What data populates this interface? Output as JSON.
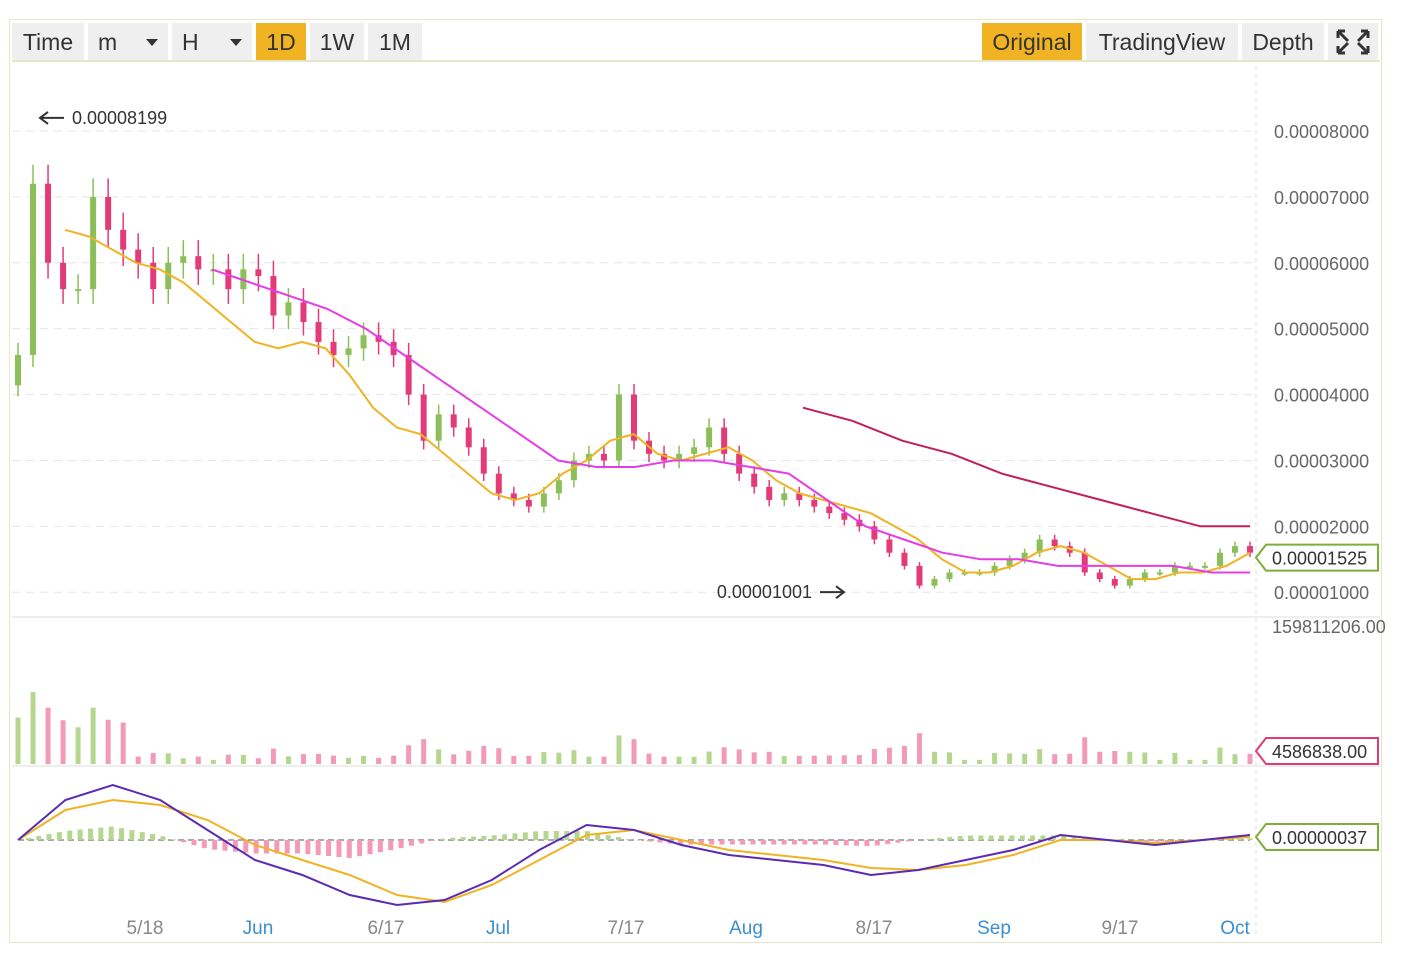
{
  "toolbar": {
    "time_label": "Time",
    "minute_select": "m",
    "hour_select": "H",
    "intervals": [
      "1D",
      "1W",
      "1M"
    ],
    "active_interval": "1D",
    "views": [
      "Original",
      "TradingView",
      "Depth"
    ],
    "active_view": "Original"
  },
  "colors": {
    "up": "#8cbf5a",
    "down": "#e23b77",
    "ma_short": "#f0b324",
    "ma_mid": "#e63ce6",
    "ma_long": "#c21e5c",
    "dif": "#5b2bb3",
    "dea": "#f0b324",
    "active_button": "#f0b324"
  },
  "chart_data": {
    "type": "line",
    "price": {
      "x_ticks": [
        "5/18",
        "Jun",
        "6/17",
        "Jul",
        "7/17",
        "Aug",
        "8/17",
        "Sep",
        "9/17",
        "Oct"
      ],
      "y_ticks": [
        "0.00008000",
        "0.00007000",
        "0.00006000",
        "0.00005000",
        "0.00004000",
        "0.00003000",
        "0.00002000",
        "0.00001000"
      ],
      "ylim": [
        7e-06,
        8.85e-05
      ],
      "high_annotation": "0.00008199",
      "low_annotation": "0.00001001",
      "last_price": "0.00001525",
      "candles_close": [
        4.6e-05,
        7.2e-05,
        6e-05,
        5.6e-05,
        5.6e-05,
        7e-05,
        6.5e-05,
        6.2e-05,
        6e-05,
        5.6e-05,
        6e-05,
        6.1e-05,
        5.9e-05,
        5.9e-05,
        5.6e-05,
        5.9e-05,
        5.8e-05,
        5.2e-05,
        5.4e-05,
        5.1e-05,
        4.8e-05,
        4.6e-05,
        4.7e-05,
        4.9e-05,
        4.8e-05,
        4.6e-05,
        4e-05,
        3.3e-05,
        3.7e-05,
        3.5e-05,
        3.2e-05,
        2.8e-05,
        2.5e-05,
        2.4e-05,
        2.3e-05,
        2.5e-05,
        2.7e-05,
        3e-05,
        3.1e-05,
        3e-05,
        4e-05,
        3.3e-05,
        3.1e-05,
        3e-05,
        3.1e-05,
        3.2e-05,
        3.5e-05,
        3.1e-05,
        2.8e-05,
        2.6e-05,
        2.4e-05,
        2.5e-05,
        2.4e-05,
        2.3e-05,
        2.2e-05,
        2.1e-05,
        2e-05,
        1.8e-05,
        1.6e-05,
        1.4e-05,
        1.1e-05,
        1.2e-05,
        1.3e-05,
        1.3e-05,
        1.3e-05,
        1.4e-05,
        1.5e-05,
        1.6e-05,
        1.8e-05,
        1.7e-05,
        1.6e-05,
        1.3e-05,
        1.2e-05,
        1.1e-05,
        1.2e-05,
        1.3e-05,
        1.3e-05,
        1.4e-05,
        1.4e-05,
        1.4e-05,
        1.6e-05,
        1.7e-05,
        1.6e-05
      ],
      "ma_short": [
        6.5e-05,
        6.4e-05,
        6.2e-05,
        6e-05,
        5.9e-05,
        5.7e-05,
        5.4e-05,
        5.1e-05,
        4.8e-05,
        4.7e-05,
        4.8e-05,
        4.7e-05,
        4.3e-05,
        3.8e-05,
        3.5e-05,
        3.4e-05,
        3.1e-05,
        2.8e-05,
        2.5e-05,
        2.4e-05,
        2.5e-05,
        2.8e-05,
        3e-05,
        3.3e-05,
        3.4e-05,
        3.1e-05,
        3e-05,
        3.1e-05,
        3.2e-05,
        3e-05,
        2.7e-05,
        2.5e-05,
        2.4e-05,
        2.3e-05,
        2.2e-05,
        2e-05,
        1.8e-05,
        1.5e-05,
        1.3e-05,
        1.3e-05,
        1.4e-05,
        1.6e-05,
        1.7e-05,
        1.6e-05,
        1.4e-05,
        1.2e-05,
        1.2e-05,
        1.3e-05,
        1.3e-05,
        1.4e-05,
        1.6e-05
      ],
      "ma_mid": [
        5.9e-05,
        5.7e-05,
        5.5e-05,
        5.3e-05,
        5e-05,
        4.6e-05,
        4.2e-05,
        3.8e-05,
        3.4e-05,
        3e-05,
        2.9e-05,
        2.9e-05,
        3e-05,
        3e-05,
        2.9e-05,
        2.8e-05,
        2.4e-05,
        2e-05,
        1.8e-05,
        1.6e-05,
        1.5e-05,
        1.5e-05,
        1.4e-05,
        1.4e-05,
        1.4e-05,
        1.4e-05,
        1.3e-05,
        1.3e-05
      ],
      "ma_long": [
        3.8e-05,
        3.6e-05,
        3.3e-05,
        3.1e-05,
        2.8e-05,
        2.6e-05,
        2.4e-05,
        2.2e-05,
        2e-05,
        2e-05
      ]
    },
    "volume": {
      "max_label": "159811206.00",
      "last_label": "4586838.00",
      "ylim": [
        0,
        159811206
      ]
    },
    "macd": {
      "last_label": "0.00000037"
    }
  }
}
